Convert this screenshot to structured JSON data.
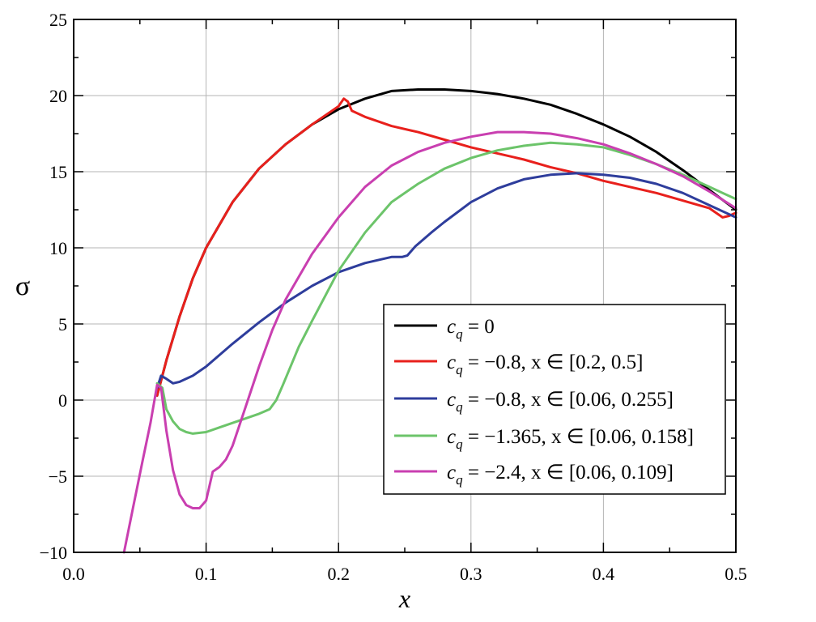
{
  "chart_data": {
    "type": "line",
    "xlabel": "x",
    "ylabel": "σ",
    "xlim": [
      0.0,
      0.5
    ],
    "ylim": [
      -10,
      25
    ],
    "grid": true,
    "legend_position": "lower-right",
    "x_ticks": [
      "0.0",
      "0.1",
      "0.2",
      "0.3",
      "0.4",
      "0.5"
    ],
    "y_ticks": [
      "25",
      "20",
      "15",
      "10",
      "5",
      "0",
      "−5",
      "−10"
    ],
    "series": [
      {
        "name": "c_q = 0",
        "legend": {
          "base": "c",
          "sub": "q",
          "rest": " = 0"
        },
        "color": "#000000",
        "x": [
          0.063,
          0.07,
          0.08,
          0.09,
          0.1,
          0.12,
          0.14,
          0.16,
          0.18,
          0.2,
          0.22,
          0.24,
          0.26,
          0.28,
          0.3,
          0.32,
          0.34,
          0.36,
          0.38,
          0.4,
          0.42,
          0.44,
          0.46,
          0.48,
          0.5
        ],
        "y": [
          0.3,
          2.6,
          5.5,
          8.0,
          10.0,
          13.0,
          15.2,
          16.8,
          18.1,
          19.1,
          19.8,
          20.3,
          20.4,
          20.4,
          20.3,
          20.1,
          19.8,
          19.4,
          18.8,
          18.1,
          17.3,
          16.3,
          15.1,
          13.8,
          12.5
        ]
      },
      {
        "name": "c_q = −0.8, x ∈ [0.2, 0.5]",
        "legend": {
          "base": "c",
          "sub": "q",
          "rest": " = −0.8, x ∈ [0.2, 0.5]"
        },
        "color": "#e8201c",
        "x": [
          0.063,
          0.07,
          0.08,
          0.09,
          0.1,
          0.12,
          0.14,
          0.16,
          0.18,
          0.2,
          0.204,
          0.207,
          0.21,
          0.22,
          0.24,
          0.26,
          0.28,
          0.3,
          0.32,
          0.34,
          0.36,
          0.38,
          0.4,
          0.42,
          0.44,
          0.46,
          0.48,
          0.49,
          0.495,
          0.5
        ],
        "y": [
          0.3,
          2.6,
          5.5,
          8.0,
          10.0,
          13.0,
          15.2,
          16.8,
          18.1,
          19.3,
          19.8,
          19.6,
          19.0,
          18.6,
          18.0,
          17.6,
          17.1,
          16.6,
          16.2,
          15.8,
          15.3,
          14.9,
          14.4,
          14.0,
          13.6,
          13.1,
          12.6,
          12.0,
          12.1,
          12.3
        ]
      },
      {
        "name": "c_q = −0.8, x ∈ [0.06, 0.255]",
        "legend": {
          "base": "c",
          "sub": "q",
          "rest": " = −0.8, x ∈ [0.06, 0.255]"
        },
        "color": "#2e3d9c",
        "x": [
          0.063,
          0.066,
          0.07,
          0.075,
          0.08,
          0.09,
          0.1,
          0.12,
          0.14,
          0.16,
          0.18,
          0.2,
          0.22,
          0.24,
          0.248,
          0.252,
          0.258,
          0.27,
          0.28,
          0.3,
          0.32,
          0.34,
          0.36,
          0.38,
          0.4,
          0.42,
          0.44,
          0.46,
          0.48,
          0.5
        ],
        "y": [
          0.8,
          1.6,
          1.4,
          1.1,
          1.2,
          1.6,
          2.2,
          3.7,
          5.1,
          6.4,
          7.5,
          8.4,
          9.0,
          9.4,
          9.4,
          9.5,
          10.1,
          11.0,
          11.7,
          13.0,
          13.9,
          14.5,
          14.8,
          14.9,
          14.8,
          14.6,
          14.2,
          13.6,
          12.8,
          12.0
        ]
      },
      {
        "name": "c_q = −1.365, x ∈ [0.06, 0.158]",
        "legend": {
          "base": "c",
          "sub": "q",
          "rest": " = −1.365, x ∈ [0.06, 0.158]"
        },
        "color": "#6cc46a",
        "x": [
          0.063,
          0.067,
          0.07,
          0.075,
          0.08,
          0.085,
          0.09,
          0.1,
          0.11,
          0.12,
          0.13,
          0.14,
          0.148,
          0.153,
          0.158,
          0.17,
          0.18,
          0.2,
          0.22,
          0.24,
          0.26,
          0.28,
          0.3,
          0.32,
          0.34,
          0.36,
          0.38,
          0.4,
          0.42,
          0.44,
          0.46,
          0.48,
          0.5
        ],
        "y": [
          1.1,
          0.8,
          -0.6,
          -1.4,
          -1.9,
          -2.1,
          -2.2,
          -2.1,
          -1.8,
          -1.5,
          -1.2,
          -0.9,
          -0.6,
          0.0,
          1.0,
          3.5,
          5.2,
          8.5,
          11.0,
          13.0,
          14.2,
          15.2,
          15.9,
          16.4,
          16.7,
          16.9,
          16.8,
          16.6,
          16.1,
          15.5,
          14.8,
          14.0,
          13.2
        ]
      },
      {
        "name": "c_q = −2.4, x ∈ [0.06, 0.109]",
        "legend": {
          "base": "c",
          "sub": "q",
          "rest": " = −2.4, x ∈ [0.06, 0.109]"
        },
        "color": "#c93fb0",
        "x": [
          0.038,
          0.045,
          0.052,
          0.058,
          0.063,
          0.066,
          0.07,
          0.075,
          0.08,
          0.085,
          0.09,
          0.095,
          0.1,
          0.105,
          0.11,
          0.115,
          0.12,
          0.13,
          0.14,
          0.15,
          0.16,
          0.18,
          0.2,
          0.22,
          0.24,
          0.26,
          0.28,
          0.3,
          0.32,
          0.34,
          0.36,
          0.38,
          0.4,
          0.42,
          0.44,
          0.46,
          0.48,
          0.5
        ],
        "y": [
          -10.0,
          -7.0,
          -4.0,
          -1.5,
          1.0,
          0.8,
          -2.0,
          -4.6,
          -6.2,
          -6.9,
          -7.1,
          -7.1,
          -6.6,
          -4.7,
          -4.4,
          -3.9,
          -3.0,
          -0.4,
          2.2,
          4.6,
          6.6,
          9.6,
          12.0,
          14.0,
          15.4,
          16.3,
          16.9,
          17.3,
          17.6,
          17.6,
          17.5,
          17.2,
          16.8,
          16.2,
          15.5,
          14.7,
          13.7,
          12.6
        ]
      }
    ]
  }
}
